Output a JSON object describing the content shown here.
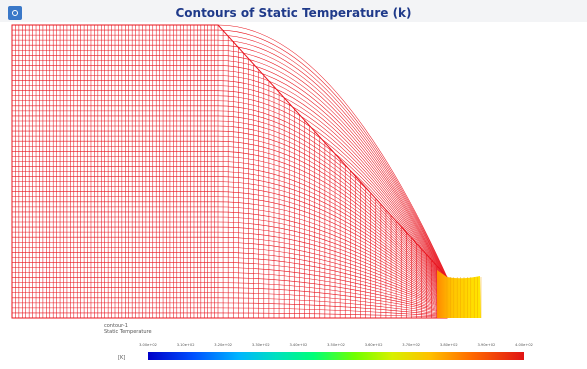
{
  "window": {
    "title": "Contours of Static Temperature (k)",
    "app_icon": "fluent-logo-icon"
  },
  "legend": {
    "surface_label": "contour-1",
    "field_label": "Static Temperature",
    "units": "[K]",
    "ticks": [
      "3.00e+02",
      "3.10e+02",
      "3.20e+02",
      "3.30e+02",
      "3.40e+02",
      "3.50e+02",
      "3.60e+02",
      "3.70e+02",
      "3.80e+02",
      "3.90e+02",
      "4.00e+02"
    ],
    "colormap": [
      "#0000c8",
      "#0050ff",
      "#00b4ff",
      "#00e0c0",
      "#00ff78",
      "#70ff00",
      "#d8f000",
      "#ffc000",
      "#ff6a00",
      "#e01414"
    ]
  },
  "mesh": {
    "line_color": "#e8141e",
    "exit_fill": "#ffd400"
  }
}
